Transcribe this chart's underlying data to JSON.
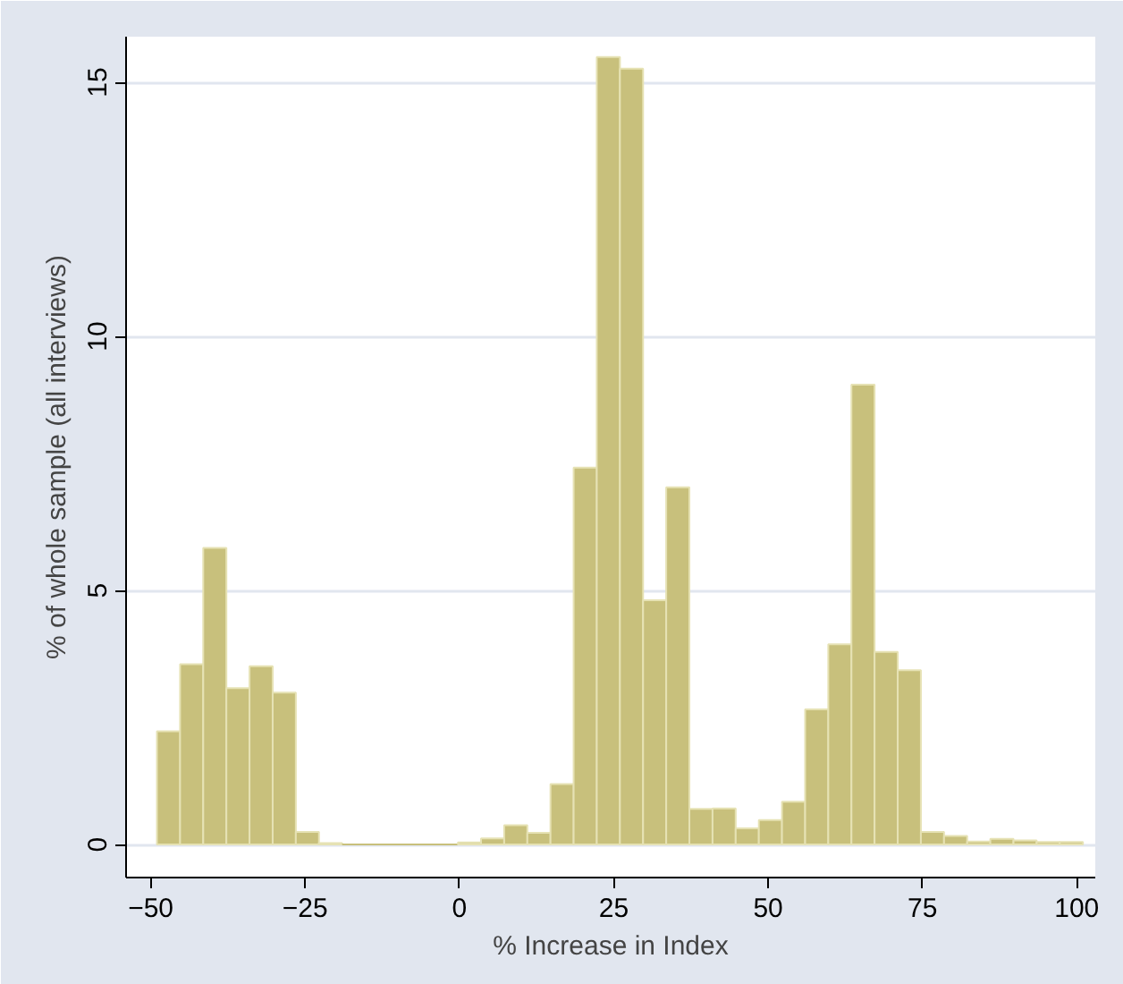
{
  "chart_data": {
    "type": "histogram",
    "xlabel": "% Increase in Index",
    "ylabel": "% of whole sample (all interviews)",
    "bins": [
      -49,
      -45.25,
      -41.5,
      -37.75,
      -34,
      -30.25,
      -26.5,
      -22.75,
      -19,
      -0.25,
      3.5,
      7.25,
      11,
      14.75,
      18.5,
      22.25,
      26,
      29.75,
      33.5,
      37.25,
      41,
      44.75,
      48.5,
      52.25,
      56,
      59.75,
      63.5,
      67.25,
      71,
      74.75,
      78.5,
      82.25,
      86,
      89.75,
      93.5,
      97.25,
      101
    ],
    "values": [
      2.23,
      3.55,
      5.84,
      3.08,
      3.51,
      2.99,
      0.25,
      0.03,
      0,
      0.04,
      0.12,
      0.38,
      0.23,
      1.19,
      7.42,
      15.5,
      15.27,
      4.81,
      7.03,
      0.7,
      0.71,
      0.32,
      0.48,
      0.84,
      2.66,
      3.94,
      9.05,
      3.79,
      3.43,
      0.25,
      0.17,
      0.06,
      0.11,
      0.08,
      0.05,
      0.05
    ],
    "color": "#c8c07c",
    "xlim": [
      -54,
      103
    ],
    "ylim": [
      -0.65,
      15.9
    ],
    "xticks": [
      -50,
      -25,
      0,
      25,
      50,
      75,
      100
    ],
    "yticks": [
      0,
      5,
      10,
      15
    ],
    "grid": "y"
  }
}
